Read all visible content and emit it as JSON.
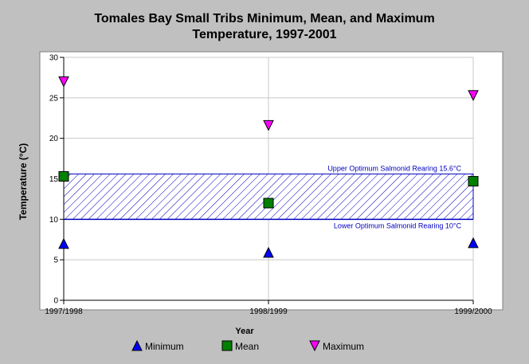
{
  "chart_data": {
    "type": "scatter",
    "title_line1": "Tomales Bay Small Tribs Minimum, Mean, and Maximum",
    "title_line2": "Temperature, 1997-2001",
    "xlabel": "Year",
    "ylabel": "Temperature (°C)",
    "categories": [
      "1997/1998",
      "1998/1999",
      "1999/2000"
    ],
    "ylim": [
      0,
      30
    ],
    "yticks": [
      0,
      5,
      10,
      15,
      20,
      25,
      30
    ],
    "grid": true,
    "legend_position": "bottom",
    "series": [
      {
        "name": "Minimum",
        "marker": "triangle-up",
        "color": "#0000ff",
        "values": [
          7.0,
          5.9,
          7.1
        ]
      },
      {
        "name": "Mean",
        "marker": "square",
        "color": "#008000",
        "values": [
          15.3,
          12.0,
          14.7
        ]
      },
      {
        "name": "Maximum",
        "marker": "triangle-down",
        "color": "#ff00ff",
        "values": [
          27.0,
          21.6,
          25.3
        ]
      }
    ],
    "band": {
      "lower": 10,
      "upper": 15.6,
      "color": "#0000c0",
      "upper_label": "Upper Optimum Salmonid Rearing 15.6°C",
      "lower_label": "Lower Optimum Salmonid Rearing 10°C"
    }
  }
}
